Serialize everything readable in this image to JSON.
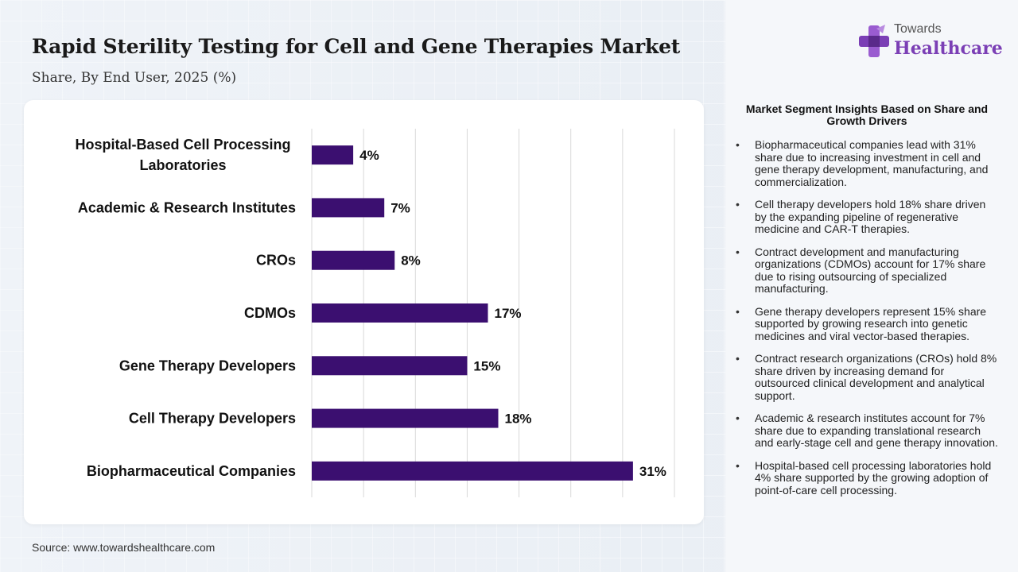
{
  "title": "Rapid Sterility Testing for Cell and Gene Therapies Market",
  "subtitle": "Share, By End User, 2025 (%)",
  "source": "Source: www.towardshealthcare.com",
  "logo": {
    "line1": "Towards",
    "line2": "Healthcare"
  },
  "colors": {
    "bar": "#3b0f70",
    "grid": "#d9d9d9",
    "brand": "#7b3fb5"
  },
  "insights": {
    "heading": "Market Segment Insights Based on Share and Growth Drivers",
    "items": [
      "Biopharmaceutical companies lead with 31% share due to increasing investment in cell and gene therapy development, manufacturing, and commercialization.",
      "Cell therapy developers hold 18% share driven by the expanding pipeline of regenerative medicine and CAR-T therapies.",
      "Contract development and manufacturing organizations (CDMOs) account for 17% share due to rising outsourcing of specialized manufacturing.",
      "Gene therapy developers represent 15% share supported by growing research into genetic medicines and viral vector-based therapies.",
      "Contract research organizations (CROs) hold 8% share driven by increasing demand for outsourced clinical development and analytical support.",
      "Academic & research institutes account for 7% share due to expanding translational research and early-stage cell and gene therapy innovation.",
      "Hospital-based cell processing laboratories hold 4% share supported by the growing adoption of point-of-care cell processing."
    ]
  },
  "chart_data": {
    "type": "bar",
    "orientation": "horizontal",
    "categories": [
      [
        "Hospital-Based Cell Processing",
        "Laboratories"
      ],
      [
        "Academic & Research Institutes"
      ],
      [
        "CROs"
      ],
      [
        "CDMOs"
      ],
      [
        "Gene Therapy Developers"
      ],
      [
        "Cell Therapy Developers"
      ],
      [
        "Biopharmaceutical Companies"
      ]
    ],
    "values": [
      4,
      7,
      8,
      17,
      15,
      18,
      31
    ],
    "value_labels": [
      "4%",
      "7%",
      "8%",
      "17%",
      "15%",
      "18%",
      "31%"
    ],
    "xlim": [
      0,
      35
    ],
    "grid": true,
    "xlabel": "",
    "ylabel": ""
  }
}
